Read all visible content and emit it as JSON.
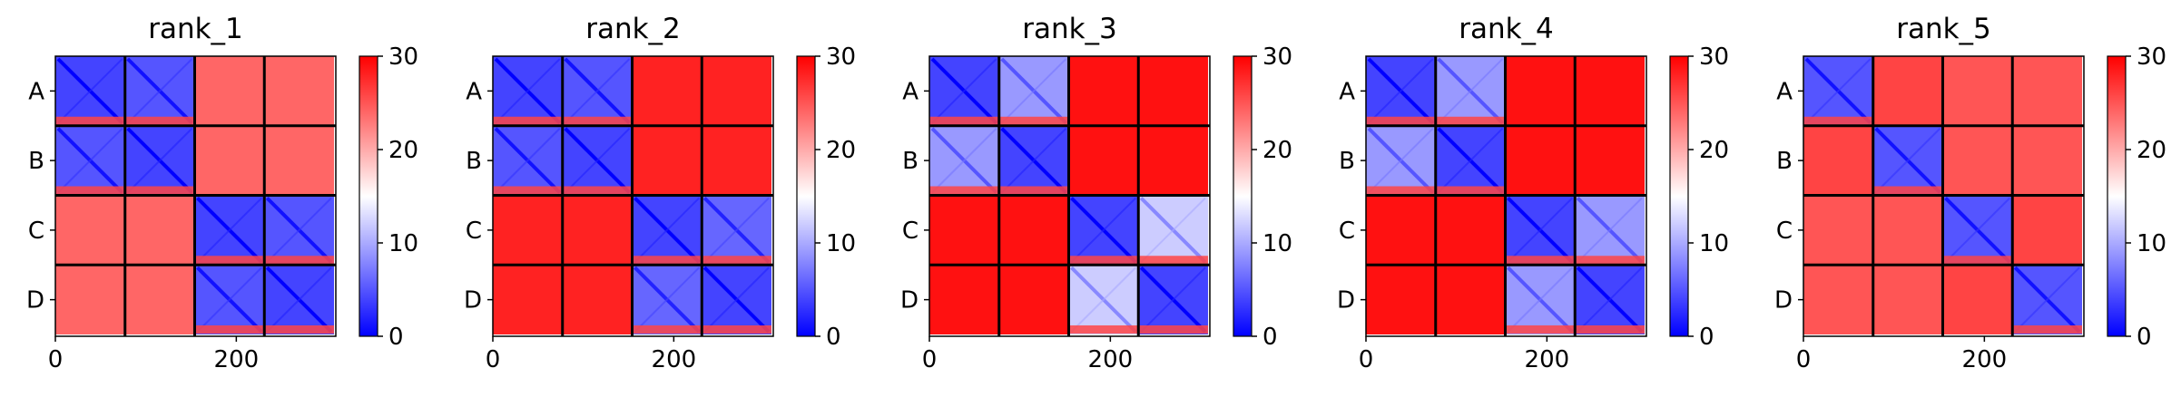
{
  "chart_data": {
    "type": "heatmap",
    "description_type": "PAE matrices",
    "colormap": {
      "name": "bwr",
      "low": "#0000ff",
      "mid": "#ffffff",
      "high": "#ff0000",
      "vmin": 0,
      "vmax": 30
    },
    "colorbar_ticks": [
      "0",
      "10",
      "20",
      "30"
    ],
    "xlim": [
      0,
      310
    ],
    "x_ticks": [
      "0",
      "200"
    ],
    "chain_labels": [
      "A",
      "B",
      "C",
      "D"
    ],
    "panels": [
      {
        "title": "rank_1",
        "chain_lengths": [
          77,
          77,
          77,
          77
        ],
        "block_mean_pae": [
          [
            4,
            5,
            24,
            24
          ],
          [
            5,
            4,
            24,
            24
          ],
          [
            24,
            24,
            4,
            5
          ],
          [
            24,
            24,
            5,
            4
          ]
        ]
      },
      {
        "title": "rank_2",
        "chain_lengths": [
          77,
          77,
          77,
          77
        ],
        "block_mean_pae": [
          [
            4,
            5,
            28,
            28
          ],
          [
            5,
            4,
            28,
            28
          ],
          [
            28,
            28,
            4,
            6
          ],
          [
            28,
            28,
            6,
            4
          ]
        ]
      },
      {
        "title": "rank_3",
        "chain_lengths": [
          77,
          77,
          77,
          77
        ],
        "block_mean_pae": [
          [
            4,
            9,
            29,
            29
          ],
          [
            9,
            4,
            29,
            29
          ],
          [
            29,
            29,
            4,
            12
          ],
          [
            29,
            29,
            12,
            4
          ]
        ]
      },
      {
        "title": "rank_4",
        "chain_lengths": [
          77,
          77,
          77,
          77
        ],
        "block_mean_pae": [
          [
            4,
            9,
            29,
            29
          ],
          [
            9,
            4,
            29,
            29
          ],
          [
            29,
            29,
            4,
            9
          ],
          [
            29,
            29,
            9,
            4
          ]
        ]
      },
      {
        "title": "rank_5",
        "chain_lengths": [
          77,
          77,
          77,
          77
        ],
        "block_mean_pae": [
          [
            5,
            26,
            25,
            25
          ],
          [
            26,
            5,
            25,
            25
          ],
          [
            25,
            25,
            5,
            26
          ],
          [
            25,
            25,
            26,
            5
          ]
        ]
      }
    ]
  }
}
